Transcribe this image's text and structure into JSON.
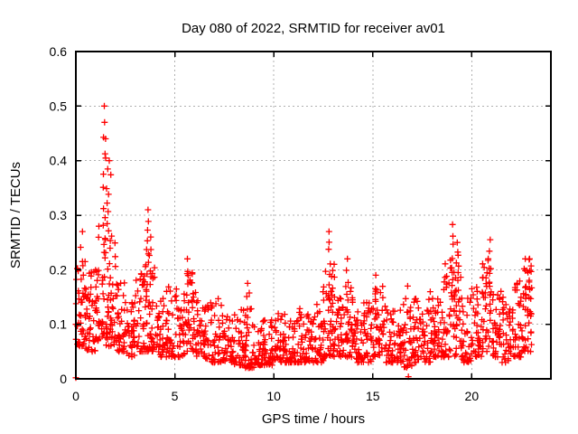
{
  "chart_data": {
    "type": "scatter",
    "title": "Day 080 of 2022, SRMTID for receiver av01",
    "xlabel": "GPS time / hours",
    "ylabel": "SRMTID / TECUs",
    "xlim": [
      0,
      24
    ],
    "ylim": [
      0,
      0.6
    ],
    "xticks": [
      0,
      5,
      10,
      15,
      20
    ],
    "yticks": [
      0,
      0.1,
      0.2,
      0.3,
      0.4,
      0.5,
      0.6
    ],
    "ytick_labels": [
      "0",
      "0.1",
      "0.2",
      "0.3",
      "0.4",
      "0.5",
      "0.6"
    ],
    "grid": true,
    "legend": "none",
    "series_name": "SRMTID",
    "marker": {
      "shape": "plus",
      "color": "#ff0000",
      "size": 7
    },
    "grid_color": "#b0b0b0",
    "border_color": "#000000",
    "x_data_start": 0.0,
    "x_data_end": 23.05,
    "bins_format": "[x_start_hour, x_end_hour, approx_point_count, y_min_TECU, y_typical_TECU, y_max_TECU]",
    "density_bins": [
      [
        0.0,
        0.5,
        42,
        0.06,
        0.11,
        0.22
      ],
      [
        0.5,
        1.0,
        40,
        0.05,
        0.1,
        0.2
      ],
      [
        1.0,
        1.5,
        42,
        0.07,
        0.13,
        0.3
      ],
      [
        1.5,
        2.0,
        42,
        0.06,
        0.12,
        0.28
      ],
      [
        2.0,
        2.5,
        38,
        0.05,
        0.1,
        0.18
      ],
      [
        2.5,
        3.0,
        34,
        0.04,
        0.09,
        0.15
      ],
      [
        3.0,
        3.5,
        36,
        0.05,
        0.1,
        0.2
      ],
      [
        3.5,
        4.0,
        40,
        0.05,
        0.11,
        0.24
      ],
      [
        4.0,
        4.5,
        34,
        0.04,
        0.08,
        0.15
      ],
      [
        4.5,
        5.0,
        34,
        0.04,
        0.08,
        0.18
      ],
      [
        5.0,
        5.5,
        36,
        0.04,
        0.09,
        0.19
      ],
      [
        5.5,
        6.0,
        38,
        0.05,
        0.1,
        0.2
      ],
      [
        6.0,
        6.5,
        34,
        0.04,
        0.08,
        0.16
      ],
      [
        6.5,
        7.0,
        34,
        0.03,
        0.07,
        0.14
      ],
      [
        7.0,
        7.5,
        34,
        0.03,
        0.07,
        0.15
      ],
      [
        7.5,
        8.0,
        34,
        0.03,
        0.06,
        0.12
      ],
      [
        8.0,
        8.5,
        34,
        0.025,
        0.06,
        0.13
      ],
      [
        8.5,
        9.0,
        36,
        0.02,
        0.05,
        0.13
      ],
      [
        9.0,
        9.5,
        34,
        0.025,
        0.05,
        0.11
      ],
      [
        9.5,
        10.0,
        34,
        0.025,
        0.05,
        0.11
      ],
      [
        10.0,
        10.5,
        36,
        0.03,
        0.06,
        0.13
      ],
      [
        10.5,
        11.0,
        34,
        0.03,
        0.05,
        0.12
      ],
      [
        11.0,
        11.5,
        34,
        0.03,
        0.06,
        0.13
      ],
      [
        11.5,
        12.0,
        34,
        0.03,
        0.06,
        0.12
      ],
      [
        12.0,
        12.5,
        36,
        0.03,
        0.07,
        0.16
      ],
      [
        12.5,
        13.0,
        38,
        0.04,
        0.08,
        0.2
      ],
      [
        13.0,
        13.5,
        36,
        0.04,
        0.07,
        0.15
      ],
      [
        13.5,
        14.0,
        36,
        0.04,
        0.08,
        0.17
      ],
      [
        14.0,
        14.5,
        34,
        0.03,
        0.06,
        0.13
      ],
      [
        14.5,
        15.0,
        34,
        0.03,
        0.07,
        0.14
      ],
      [
        15.0,
        15.5,
        36,
        0.04,
        0.08,
        0.17
      ],
      [
        15.5,
        16.0,
        34,
        0.03,
        0.07,
        0.15
      ],
      [
        16.0,
        16.5,
        34,
        0.03,
        0.06,
        0.13
      ],
      [
        16.5,
        17.0,
        32,
        0.02,
        0.06,
        0.14
      ],
      [
        17.0,
        17.5,
        34,
        0.03,
        0.07,
        0.15
      ],
      [
        17.5,
        18.0,
        34,
        0.03,
        0.07,
        0.16
      ],
      [
        18.0,
        18.5,
        36,
        0.04,
        0.08,
        0.18
      ],
      [
        18.5,
        19.0,
        38,
        0.04,
        0.09,
        0.22
      ],
      [
        19.0,
        19.5,
        38,
        0.04,
        0.09,
        0.24
      ],
      [
        19.5,
        20.0,
        34,
        0.03,
        0.07,
        0.15
      ],
      [
        20.0,
        20.5,
        34,
        0.04,
        0.08,
        0.17
      ],
      [
        20.5,
        21.0,
        38,
        0.05,
        0.1,
        0.22
      ],
      [
        21.0,
        21.5,
        34,
        0.04,
        0.08,
        0.17
      ],
      [
        21.5,
        22.0,
        34,
        0.03,
        0.07,
        0.15
      ],
      [
        22.0,
        22.5,
        36,
        0.04,
        0.08,
        0.18
      ],
      [
        22.5,
        23.05,
        40,
        0.05,
        0.1,
        0.22
      ]
    ],
    "peaks_format": "[x_hour, y_top_TECU, approx_point_count]",
    "peaks": [
      [
        0.3,
        0.27,
        6
      ],
      [
        1.45,
        0.5,
        10
      ],
      [
        1.55,
        0.44,
        9
      ],
      [
        1.7,
        0.4,
        8
      ],
      [
        3.6,
        0.31,
        10
      ],
      [
        3.75,
        0.26,
        6
      ],
      [
        5.6,
        0.22,
        6
      ],
      [
        8.7,
        0.175,
        6
      ],
      [
        12.8,
        0.27,
        9
      ],
      [
        13.0,
        0.21,
        5
      ],
      [
        13.7,
        0.22,
        6
      ],
      [
        15.2,
        0.19,
        5
      ],
      [
        16.7,
        0.17,
        4
      ],
      [
        19.0,
        0.283,
        9
      ],
      [
        19.3,
        0.25,
        7
      ],
      [
        20.9,
        0.255,
        8
      ],
      [
        22.7,
        0.22,
        6
      ],
      [
        22.95,
        0.22,
        6
      ]
    ],
    "outliers_format": "[x_hour, y_TECU]",
    "outliers": [
      [
        0.0,
        0.002
      ],
      [
        16.8,
        0.004
      ]
    ]
  }
}
